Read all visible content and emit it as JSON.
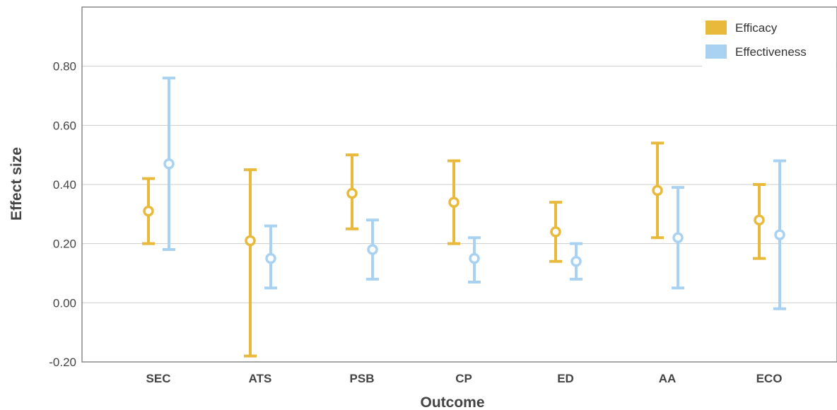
{
  "chart_data": {
    "type": "errorbar",
    "title": "",
    "xlabel": "Outcome",
    "ylabel": "Effect size",
    "categories": [
      "SEC",
      "ATS",
      "PSB",
      "CP",
      "ED",
      "AA",
      "ECO"
    ],
    "ylim": [
      -0.2,
      1.0
    ],
    "yticks": [
      -0.2,
      0.0,
      0.2,
      0.4,
      0.6,
      0.8
    ],
    "ytick_labels": [
      "-0.20",
      "0.00",
      "0.20",
      "0.40",
      "0.60",
      "0.80"
    ],
    "grid": true,
    "legend_position": "top-right",
    "series": [
      {
        "name": "Efficacy",
        "color": "#E8B93A",
        "values": [
          0.31,
          0.21,
          0.37,
          0.34,
          0.24,
          0.38,
          0.28
        ],
        "lower": [
          0.2,
          -0.18,
          0.25,
          0.2,
          0.14,
          0.22,
          0.15
        ],
        "upper": [
          0.42,
          0.45,
          0.5,
          0.48,
          0.34,
          0.54,
          0.4
        ]
      },
      {
        "name": "Effectiveness",
        "color": "#A9D2F2",
        "values": [
          0.47,
          0.15,
          0.18,
          0.15,
          0.14,
          0.22,
          0.23
        ],
        "lower": [
          0.18,
          0.05,
          0.08,
          0.07,
          0.08,
          0.05,
          -0.02
        ],
        "upper": [
          0.76,
          0.26,
          0.28,
          0.22,
          0.2,
          0.39,
          0.48
        ]
      }
    ]
  }
}
